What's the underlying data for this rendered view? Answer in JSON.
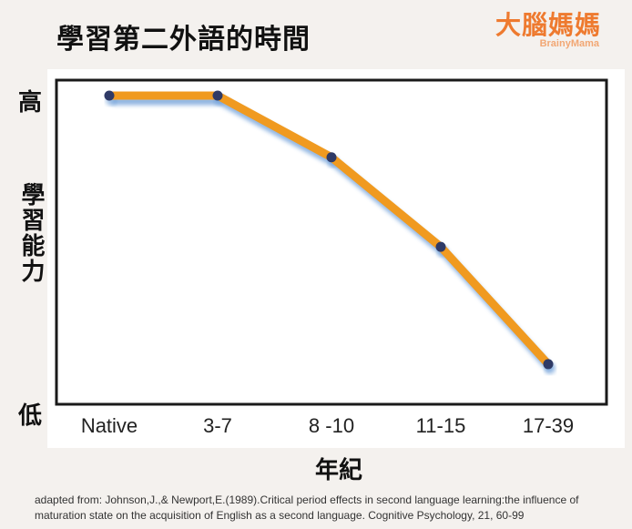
{
  "title": "學習第二外語的時間",
  "logo": {
    "chinese": "大腦媽媽",
    "english": "BrainyMama"
  },
  "chart_data": {
    "type": "line",
    "categories": [
      "Native",
      "3-7",
      "8 -10",
      "11-15",
      "17-39"
    ],
    "values": [
      100,
      100,
      80,
      51,
      13
    ],
    "ylim": [
      0,
      105
    ],
    "xlabel": "年紀",
    "ylabel": "學習能力",
    "y_high_label": "高",
    "y_low_label": "低",
    "line_color": "#f09a20",
    "marker_color": "#2f3a66",
    "shadow_color": "#6d9ed8",
    "grid": false
  },
  "source_note": "adapted from: Johnson,J.,& Newport,E.(1989).Critical period effects in second language learning:the influence of maturation state on the acquisition of English as a second language. Cognitive Psychology, 21, 60-99"
}
